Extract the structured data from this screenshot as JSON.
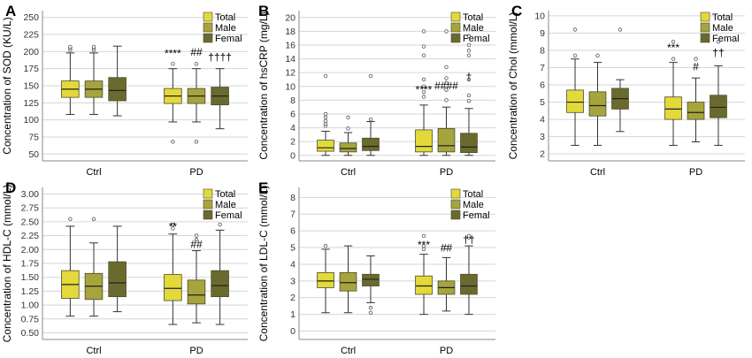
{
  "colors": {
    "total": "#e3d93a",
    "male": "#a6a43d",
    "female": "#6b6a2e",
    "grid": "#d6d6d6",
    "whisker": "#333333"
  },
  "chart_data": [
    {
      "id": "A",
      "type": "box",
      "panel_label": "A",
      "ylabel": "Concentration of SOD (KU/L)",
      "ylim": [
        40,
        260
      ],
      "yticks": [
        50,
        75,
        100,
        125,
        150,
        175,
        200,
        225,
        250
      ],
      "categories": [
        "Ctrl",
        "PD"
      ],
      "legend": [
        "Total",
        "Male",
        "Femal"
      ],
      "boxes": [
        {
          "group": "Ctrl",
          "series": "Total",
          "min": 108,
          "q1": 133,
          "median": 145,
          "q3": 157,
          "max": 198,
          "outliers": [
            202,
            205,
            207
          ]
        },
        {
          "group": "Ctrl",
          "series": "Male",
          "min": 108,
          "q1": 133,
          "median": 145,
          "q3": 157,
          "max": 198,
          "outliers": [
            202,
            205,
            207
          ]
        },
        {
          "group": "Ctrl",
          "series": "Femal",
          "min": 106,
          "q1": 128,
          "median": 143,
          "q3": 162,
          "max": 208,
          "outliers": []
        },
        {
          "group": "PD",
          "series": "Total",
          "min": 97,
          "q1": 124,
          "median": 135,
          "q3": 146,
          "max": 175,
          "outliers": [
            182,
            68
          ]
        },
        {
          "group": "PD",
          "series": "Male",
          "min": 97,
          "q1": 124,
          "median": 135,
          "q3": 146,
          "max": 175,
          "outliers": [
            182,
            68
          ]
        },
        {
          "group": "PD",
          "series": "Femal",
          "min": 87,
          "q1": 122,
          "median": 135,
          "q3": 148,
          "max": 175,
          "outliers": []
        }
      ],
      "annotations": [
        {
          "group": "PD",
          "series": "Total",
          "text": "****",
          "value": 188
        },
        {
          "group": "PD",
          "series": "Male",
          "text": "##",
          "value": 190
        },
        {
          "group": "PD",
          "series": "Femal",
          "text": "††††",
          "value": 183
        }
      ]
    },
    {
      "id": "B",
      "type": "box",
      "panel_label": "B",
      "ylabel": "Concentration of hsCRP (mg/L)",
      "ylim": [
        -0.8,
        21
      ],
      "yticks": [
        0,
        2,
        4,
        6,
        8,
        10,
        12,
        14,
        16,
        18,
        20
      ],
      "categories": [
        "Ctrl",
        "PD"
      ],
      "legend": [
        "Total",
        "Male",
        "Femal"
      ],
      "boxes": [
        {
          "group": "Ctrl",
          "series": "Total",
          "min": 0,
          "q1": 0.6,
          "median": 1.1,
          "q3": 2.2,
          "max": 3.5,
          "outliers": [
            4.3,
            4.6,
            5.0,
            5.5,
            6.0,
            11.5
          ]
        },
        {
          "group": "Ctrl",
          "series": "Male",
          "min": 0,
          "q1": 0.5,
          "median": 1.0,
          "q3": 1.8,
          "max": 3.3,
          "outliers": [
            3.9,
            5.5
          ]
        },
        {
          "group": "Ctrl",
          "series": "Femal",
          "min": 0,
          "q1": 0.7,
          "median": 1.3,
          "q3": 2.5,
          "max": 4.9,
          "outliers": [
            5.2,
            11.5
          ]
        },
        {
          "group": "PD",
          "series": "Total",
          "min": 0,
          "q1": 0.5,
          "median": 1.3,
          "q3": 3.7,
          "max": 7.3,
          "outliers": [
            8.5,
            9.2,
            10.0,
            11.0,
            14.5,
            15.8,
            18.0
          ]
        },
        {
          "group": "PD",
          "series": "Male",
          "min": 0,
          "q1": 0.5,
          "median": 1.4,
          "q3": 3.9,
          "max": 7.0,
          "outliers": [
            8.0,
            9.5,
            10.5,
            11.2,
            12.8,
            18.0
          ]
        },
        {
          "group": "PD",
          "series": "Femal",
          "min": 0,
          "q1": 0.4,
          "median": 1.2,
          "q3": 3.2,
          "max": 6.8,
          "outliers": [
            7.9,
            8.7,
            11.0,
            14.5,
            15.2,
            16.0,
            17.3
          ]
        }
      ],
      "annotations": [
        {
          "group": "PD",
          "series": "Total",
          "text": "****",
          "value": 8.6
        },
        {
          "group": "PD",
          "series": "Male",
          "text": "####",
          "value": 9.2
        },
        {
          "group": "PD",
          "series": "Femal",
          "text": "†",
          "value": 10.5
        }
      ]
    },
    {
      "id": "C",
      "type": "box",
      "panel_label": "C",
      "ylabel": "Concentration of Chol (mmol/L)",
      "ylim": [
        1.6,
        10.3
      ],
      "yticks": [
        2,
        3,
        4,
        5,
        6,
        7,
        8,
        9,
        10
      ],
      "categories": [
        "Ctrl",
        "PD"
      ],
      "legend": [
        "Total",
        "Male",
        "Femal"
      ],
      "boxes": [
        {
          "group": "Ctrl",
          "series": "Total",
          "min": 2.5,
          "q1": 4.4,
          "median": 5.0,
          "q3": 5.7,
          "max": 7.5,
          "outliers": [
            7.7,
            9.2
          ]
        },
        {
          "group": "Ctrl",
          "series": "Male",
          "min": 2.5,
          "q1": 4.2,
          "median": 4.8,
          "q3": 5.6,
          "max": 7.3,
          "outliers": [
            7.7
          ]
        },
        {
          "group": "Ctrl",
          "series": "Femal",
          "min": 3.3,
          "q1": 4.6,
          "median": 5.2,
          "q3": 5.8,
          "max": 6.3,
          "outliers": [
            9.2
          ]
        },
        {
          "group": "PD",
          "series": "Total",
          "min": 2.5,
          "q1": 4.0,
          "median": 4.6,
          "q3": 5.3,
          "max": 7.3,
          "outliers": [
            7.5,
            8.5
          ]
        },
        {
          "group": "PD",
          "series": "Male",
          "min": 2.7,
          "q1": 4.0,
          "median": 4.4,
          "q3": 5.0,
          "max": 6.4,
          "outliers": [
            7.5
          ]
        },
        {
          "group": "PD",
          "series": "Femal",
          "min": 2.5,
          "q1": 4.1,
          "median": 4.7,
          "q3": 5.4,
          "max": 7.1,
          "outliers": [
            8.5
          ]
        }
      ],
      "annotations": [
        {
          "group": "PD",
          "series": "Total",
          "text": "***",
          "value": 7.8
        },
        {
          "group": "PD",
          "series": "Male",
          "text": "#",
          "value": 6.7
        },
        {
          "group": "PD",
          "series": "Femal",
          "text": "††",
          "value": 7.5
        }
      ]
    },
    {
      "id": "D",
      "type": "box",
      "panel_label": "D",
      "ylabel": "Concentration of HDL-C (mmol/L)",
      "ylim": [
        0.38,
        3.12
      ],
      "yticks": [
        0.5,
        0.75,
        1.0,
        1.25,
        1.5,
        1.75,
        2.0,
        2.25,
        2.5,
        2.75,
        3.0
      ],
      "ytick_labels": [
        "0.50",
        "0.75",
        "1.00",
        "1.25",
        "1.50",
        "1.75",
        "2.00",
        "2.25",
        "2.50",
        "2.75",
        "3.00"
      ],
      "categories": [
        "Ctrl",
        "PD"
      ],
      "legend": [
        "Total",
        "Male",
        "Femal"
      ],
      "boxes": [
        {
          "group": "Ctrl",
          "series": "Total",
          "min": 0.8,
          "q1": 1.12,
          "median": 1.37,
          "q3": 1.62,
          "max": 2.42,
          "outliers": [
            2.55
          ]
        },
        {
          "group": "Ctrl",
          "series": "Male",
          "min": 0.8,
          "q1": 1.1,
          "median": 1.34,
          "q3": 1.57,
          "max": 2.12,
          "outliers": [
            2.55
          ]
        },
        {
          "group": "Ctrl",
          "series": "Femal",
          "min": 0.88,
          "q1": 1.15,
          "median": 1.4,
          "q3": 1.78,
          "max": 2.42,
          "outliers": []
        },
        {
          "group": "PD",
          "series": "Total",
          "min": 0.65,
          "q1": 1.08,
          "median": 1.3,
          "q3": 1.55,
          "max": 2.28,
          "outliers": [
            2.38,
            2.45
          ]
        },
        {
          "group": "PD",
          "series": "Male",
          "min": 0.68,
          "q1": 1.02,
          "median": 1.18,
          "q3": 1.45,
          "max": 1.98,
          "outliers": [
            2.18,
            2.25
          ]
        },
        {
          "group": "PD",
          "series": "Femal",
          "min": 0.65,
          "q1": 1.15,
          "median": 1.35,
          "q3": 1.62,
          "max": 2.35,
          "outliers": [
            2.45
          ]
        }
      ],
      "annotations": [
        {
          "group": "PD",
          "series": "Total",
          "text": "**",
          "value": 2.3
        },
        {
          "group": "PD",
          "series": "Male",
          "text": "##",
          "value": 1.98
        },
        {
          "group": "PD",
          "series": "Femal",
          "text": "",
          "value": null
        }
      ]
    },
    {
      "id": "E",
      "type": "box",
      "panel_label": "E",
      "ylabel": "Concentration of LDL-C (mmol/L)",
      "ylim": [
        -0.5,
        8.6
      ],
      "yticks": [
        0,
        1,
        2,
        3,
        4,
        5,
        6,
        7,
        8
      ],
      "categories": [
        "Ctrl",
        "PD"
      ],
      "legend": [
        "Total",
        "Male",
        "Femal"
      ],
      "boxes": [
        {
          "group": "Ctrl",
          "series": "Total",
          "min": 1.1,
          "q1": 2.6,
          "median": 3.0,
          "q3": 3.5,
          "max": 4.9,
          "outliers": [
            5.1
          ]
        },
        {
          "group": "Ctrl",
          "series": "Male",
          "min": 1.1,
          "q1": 2.4,
          "median": 2.9,
          "q3": 3.5,
          "max": 5.1,
          "outliers": []
        },
        {
          "group": "Ctrl",
          "series": "Femal",
          "min": 1.7,
          "q1": 2.7,
          "median": 3.1,
          "q3": 3.4,
          "max": 4.5,
          "outliers": [
            1.1,
            1.4
          ]
        },
        {
          "group": "PD",
          "series": "Total",
          "min": 1.0,
          "q1": 2.2,
          "median": 2.7,
          "q3": 3.3,
          "max": 4.6,
          "outliers": [
            4.9,
            5.1,
            5.7
          ]
        },
        {
          "group": "PD",
          "series": "Male",
          "min": 1.2,
          "q1": 2.2,
          "median": 2.6,
          "q3": 3.0,
          "max": 4.4,
          "outliers": [
            5.0
          ]
        },
        {
          "group": "PD",
          "series": "Femal",
          "min": 1.0,
          "q1": 2.2,
          "median": 2.7,
          "q3": 3.4,
          "max": 5.1,
          "outliers": [
            5.6,
            5.7
          ]
        }
      ],
      "annotations": [
        {
          "group": "PD",
          "series": "Total",
          "text": "***",
          "value": 4.8
        },
        {
          "group": "PD",
          "series": "Male",
          "text": "##",
          "value": 4.6
        },
        {
          "group": "PD",
          "series": "Femal",
          "text": "††",
          "value": 5.1
        }
      ]
    }
  ]
}
